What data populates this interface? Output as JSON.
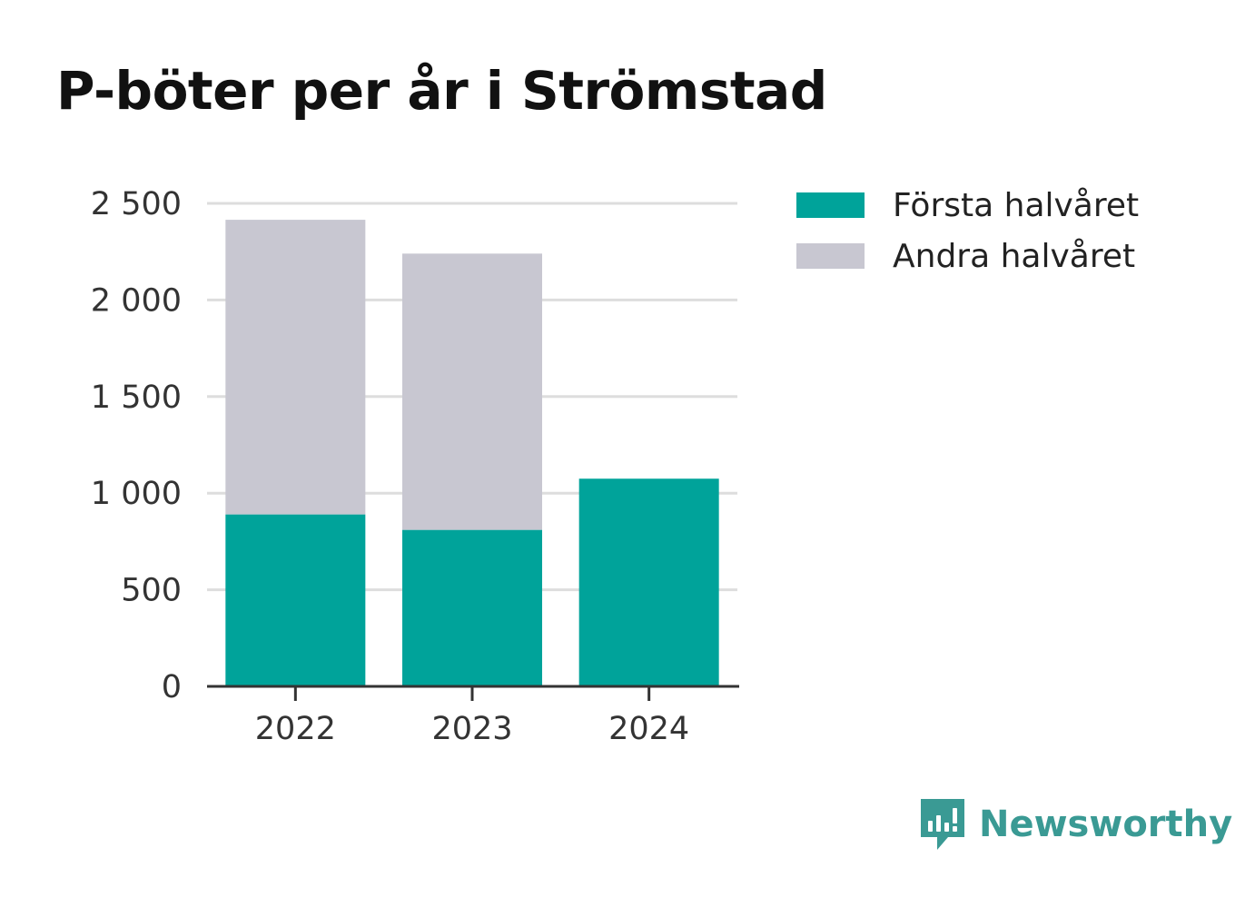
{
  "title": "P-böter per år i Strömstad",
  "brand": {
    "name": "Newsworthy",
    "icon": "newsworthy-logo-icon",
    "color": "#3a9a94"
  },
  "colors": {
    "first_half": "#00a39a",
    "second_half": "#c8c7d1",
    "grid": "#dddddd",
    "axis": "#333333"
  },
  "legend": [
    {
      "label": "Första halvåret",
      "color": "#00a39a"
    },
    {
      "label": "Andra halvåret",
      "color": "#c8c7d1"
    }
  ],
  "chart_data": {
    "type": "bar",
    "stacked": true,
    "categories": [
      "2022",
      "2023",
      "2024"
    ],
    "series": [
      {
        "name": "Första halvåret",
        "values": [
          890,
          810,
          1075
        ]
      },
      {
        "name": "Andra halvåret",
        "values": [
          1525,
          1430,
          0
        ]
      }
    ],
    "yticks": [
      0,
      500,
      1000,
      1500,
      2000,
      2500
    ],
    "ytick_labels": [
      "0",
      "500",
      "1 000",
      "1 500",
      "2 000",
      "2 500"
    ],
    "ylim": [
      0,
      2500
    ],
    "grid": true,
    "legend_position": "top-right"
  }
}
